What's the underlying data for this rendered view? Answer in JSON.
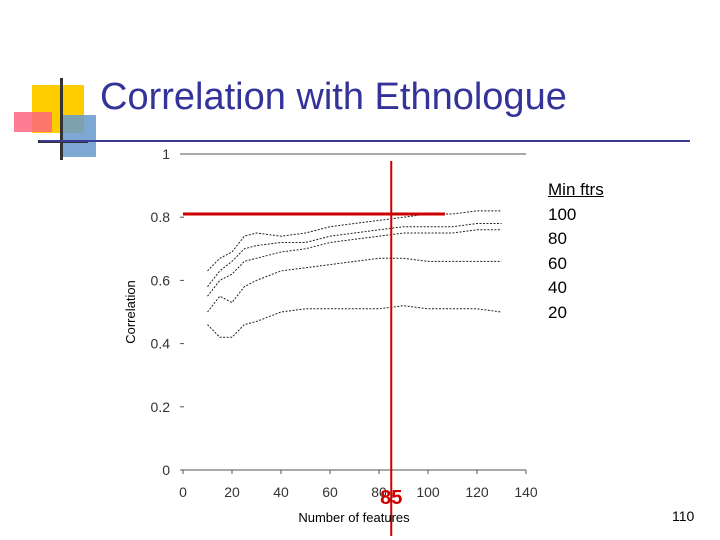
{
  "slide": {
    "title": "Correlation with Ethnologue",
    "page_number": "110"
  },
  "colors": {
    "title": "#333399",
    "accent_yellow": "#ffcc00",
    "accent_pink": "#ff6680",
    "accent_blue": "#6699cc",
    "marker_red": "#cc0000"
  },
  "chart_data": {
    "type": "line",
    "xlabel": "Number of features",
    "ylabel": "Correlation",
    "xlim": [
      0,
      140
    ],
    "ylim": [
      0,
      1
    ],
    "x_ticks": [
      0,
      20,
      40,
      60,
      80,
      100,
      120,
      140
    ],
    "y_ticks": [
      0,
      0.2,
      0.4,
      0.6,
      0.8,
      1
    ],
    "y_tick_labels": [
      "0",
      "0.2",
      "0.4",
      "0.6",
      "0.8",
      "1"
    ],
    "grid": false,
    "legend_position": "right",
    "legend_title": "Min ftrs",
    "series": [
      {
        "name": "100",
        "x": [
          10,
          15,
          20,
          25,
          30,
          40,
          50,
          60,
          70,
          80,
          90,
          100,
          110,
          120,
          130
        ],
        "y": [
          0.63,
          0.67,
          0.69,
          0.74,
          0.75,
          0.74,
          0.75,
          0.77,
          0.78,
          0.79,
          0.8,
          0.81,
          0.81,
          0.82,
          0.82
        ]
      },
      {
        "name": "80",
        "x": [
          10,
          15,
          20,
          25,
          30,
          40,
          50,
          60,
          70,
          80,
          90,
          100,
          110,
          120,
          130
        ],
        "y": [
          0.58,
          0.63,
          0.66,
          0.7,
          0.71,
          0.72,
          0.72,
          0.74,
          0.75,
          0.76,
          0.77,
          0.77,
          0.77,
          0.78,
          0.78
        ]
      },
      {
        "name": "60",
        "x": [
          10,
          15,
          20,
          25,
          30,
          40,
          50,
          60,
          70,
          80,
          90,
          100,
          110,
          120,
          130
        ],
        "y": [
          0.55,
          0.6,
          0.62,
          0.66,
          0.67,
          0.69,
          0.7,
          0.72,
          0.73,
          0.74,
          0.75,
          0.75,
          0.75,
          0.76,
          0.76
        ]
      },
      {
        "name": "40",
        "x": [
          10,
          15,
          20,
          25,
          30,
          40,
          50,
          60,
          70,
          80,
          90,
          100,
          110,
          120,
          130
        ],
        "y": [
          0.5,
          0.55,
          0.53,
          0.58,
          0.6,
          0.63,
          0.64,
          0.65,
          0.66,
          0.67,
          0.67,
          0.66,
          0.66,
          0.66,
          0.66
        ]
      },
      {
        "name": "20",
        "x": [
          10,
          15,
          20,
          25,
          30,
          40,
          50,
          60,
          70,
          80,
          90,
          100,
          110,
          120,
          130
        ],
        "y": [
          0.46,
          0.42,
          0.42,
          0.46,
          0.47,
          0.5,
          0.51,
          0.51,
          0.51,
          0.51,
          0.52,
          0.51,
          0.51,
          0.51,
          0.5
        ]
      }
    ],
    "annotations": {
      "vertical_line_x": 85,
      "vertical_line_label": "85",
      "horizontal_line_y": 0.81
    }
  }
}
